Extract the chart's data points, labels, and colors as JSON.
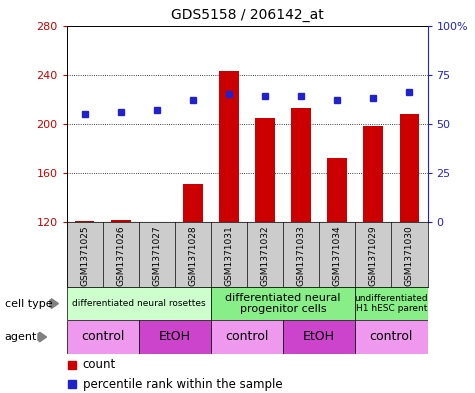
{
  "title": "GDS5158 / 206142_at",
  "samples": [
    "GSM1371025",
    "GSM1371026",
    "GSM1371027",
    "GSM1371028",
    "GSM1371031",
    "GSM1371032",
    "GSM1371033",
    "GSM1371034",
    "GSM1371029",
    "GSM1371030"
  ],
  "counts": [
    120.5,
    122,
    120.3,
    151,
    243,
    205,
    213,
    172,
    198,
    208
  ],
  "percentiles": [
    55,
    56,
    57,
    62,
    65,
    64,
    64,
    62,
    63,
    66
  ],
  "ylim_left": [
    120,
    280
  ],
  "ylim_right": [
    0,
    100
  ],
  "yticks_left": [
    120,
    160,
    200,
    240,
    280
  ],
  "yticks_right": [
    0,
    25,
    50,
    75,
    100
  ],
  "bar_color": "#cc0000",
  "dot_color": "#2222cc",
  "bar_bottom": 120,
  "cell_type_groups": [
    {
      "label": "differentiated neural rosettes",
      "start": 0,
      "end": 4,
      "color": "#ccffcc",
      "fontsize": 6.5
    },
    {
      "label": "differentiated neural\nprogenitor cells",
      "start": 4,
      "end": 8,
      "color": "#88ee88",
      "fontsize": 8
    },
    {
      "label": "undifferentiated\nH1 hESC parent",
      "start": 8,
      "end": 10,
      "color": "#88ee88",
      "fontsize": 6.5
    }
  ],
  "agent_groups": [
    {
      "label": "control",
      "start": 0,
      "end": 2,
      "color": "#ee99ee"
    },
    {
      "label": "EtOH",
      "start": 2,
      "end": 4,
      "color": "#cc44cc"
    },
    {
      "label": "control",
      "start": 4,
      "end": 6,
      "color": "#ee99ee"
    },
    {
      "label": "EtOH",
      "start": 6,
      "end": 8,
      "color": "#cc44cc"
    },
    {
      "label": "control",
      "start": 8,
      "end": 10,
      "color": "#ee99ee"
    }
  ],
  "cell_type_label": "cell type",
  "agent_label": "agent",
  "legend_count_label": "count",
  "legend_pct_label": "percentile rank within the sample",
  "tick_color_left": "#cc0000",
  "tick_color_right": "#2222cc",
  "bar_width": 0.55,
  "sample_bg_color": "#cccccc",
  "fig_bg_color": "#ffffff"
}
